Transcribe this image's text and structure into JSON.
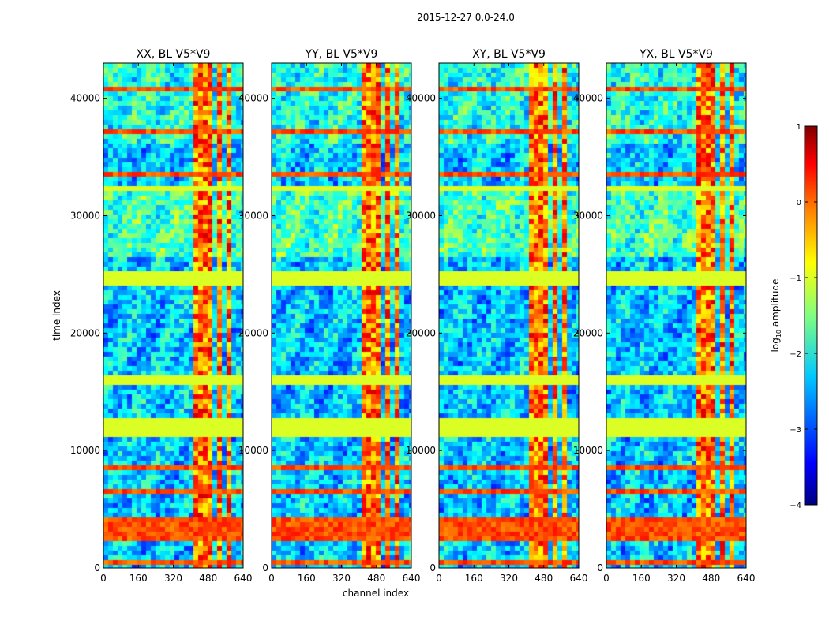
{
  "figure": {
    "suptitle": "2015-12-27 0.0-24.0",
    "xlabel": "channel index",
    "ylabel": "time index"
  },
  "chart_data": {
    "type": "heatmap",
    "xlim": [
      0,
      640
    ],
    "ylim": [
      0,
      43000
    ],
    "xticks": [
      0,
      160,
      320,
      480,
      640
    ],
    "yticks": [
      0,
      10000,
      20000,
      30000,
      40000
    ],
    "panels": [
      {
        "title": "XX, BL V5*V9"
      },
      {
        "title": "YY, BL V5*V9"
      },
      {
        "title": "XY, BL V5*V9"
      },
      {
        "title": "YX, BL V5*V9"
      }
    ],
    "colorbar": {
      "label": "log",
      "label_sub": "10",
      "label_rest": " amplitude",
      "ticks": [
        "1",
        "0",
        "−1",
        "−2",
        "−3",
        "−4"
      ],
      "range": [
        -4,
        1
      ],
      "colormap": "jet"
    },
    "flagged_time_bands": [
      [
        24000,
        25200
      ],
      [
        15500,
        16400
      ],
      [
        11300,
        12700
      ],
      [
        32200,
        32600
      ]
    ],
    "flag_color": "#99ff55"
  }
}
